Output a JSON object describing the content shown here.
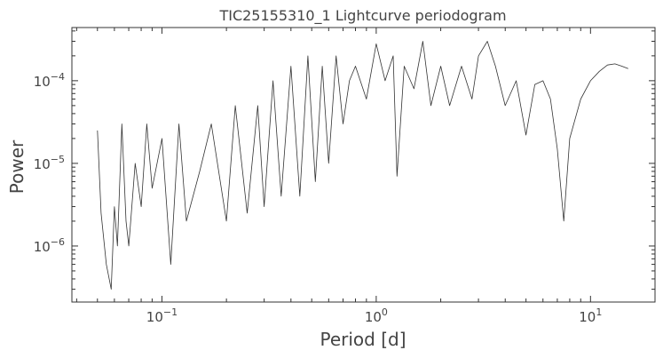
{
  "chart_data": {
    "type": "line",
    "title": "TIC25155310_1 Lightcurve periodogram",
    "xlabel": "Period [d]",
    "ylabel": "Power",
    "xscale": "log",
    "yscale": "log",
    "xlim": [
      0.038,
      20
    ],
    "ylim": [
      2.1e-07,
      0.00044
    ],
    "grid": false,
    "xticks": [
      {
        "value": 0.1,
        "base": "10",
        "exp": "−1"
      },
      {
        "value": 1,
        "base": "10",
        "exp": "0"
      },
      {
        "value": 10,
        "base": "10",
        "exp": "1"
      }
    ],
    "yticks": [
      {
        "value": 1e-06,
        "base": "10",
        "exp": "−6"
      },
      {
        "value": 1e-05,
        "base": "10",
        "exp": "−5"
      },
      {
        "value": 0.0001,
        "base": "10",
        "exp": "−4"
      }
    ],
    "series": [
      {
        "color": "#333333",
        "x": [
          0.05,
          0.052,
          0.055,
          0.058,
          0.06,
          0.062,
          0.065,
          0.068,
          0.07,
          0.075,
          0.08,
          0.085,
          0.09,
          0.1,
          0.11,
          0.12,
          0.13,
          0.15,
          0.17,
          0.2,
          0.22,
          0.25,
          0.28,
          0.3,
          0.33,
          0.36,
          0.4,
          0.44,
          0.48,
          0.52,
          0.56,
          0.6,
          0.65,
          0.7,
          0.75,
          0.8,
          0.9,
          1.0,
          1.1,
          1.2,
          1.25,
          1.35,
          1.5,
          1.65,
          1.8,
          2.0,
          2.2,
          2.5,
          2.8,
          3.0,
          3.3,
          3.6,
          4.0,
          4.5,
          5.0,
          5.5,
          6.0,
          6.5,
          7.0,
          7.5,
          8.0,
          9.0,
          10.0,
          11.0,
          12.0,
          13.0,
          14.0,
          15.0
        ],
        "y": [
          2.5e-05,
          2.5e-06,
          6e-07,
          3e-07,
          3e-06,
          1e-06,
          3e-05,
          2e-06,
          1e-06,
          1e-05,
          3e-06,
          3e-05,
          5e-06,
          2e-05,
          6e-07,
          3e-05,
          2e-06,
          8e-06,
          3e-05,
          2e-06,
          5e-05,
          2.5e-06,
          5e-05,
          3e-06,
          0.0001,
          4e-06,
          0.00015,
          4e-06,
          0.0002,
          6e-06,
          0.00015,
          1e-05,
          0.0002,
          3e-05,
          0.0001,
          0.00015,
          6e-05,
          0.00028,
          0.0001,
          0.0002,
          7e-06,
          0.00015,
          8e-05,
          0.0003,
          5e-05,
          0.00015,
          5e-05,
          0.00015,
          6e-05,
          0.0002,
          0.0003,
          0.00015,
          5e-05,
          0.0001,
          2.2e-05,
          9e-05,
          0.0001,
          6e-05,
          1.5e-05,
          2e-06,
          2e-05,
          6e-05,
          0.0001,
          0.00013,
          0.000155,
          0.00016,
          0.00015,
          0.00014
        ]
      }
    ]
  }
}
